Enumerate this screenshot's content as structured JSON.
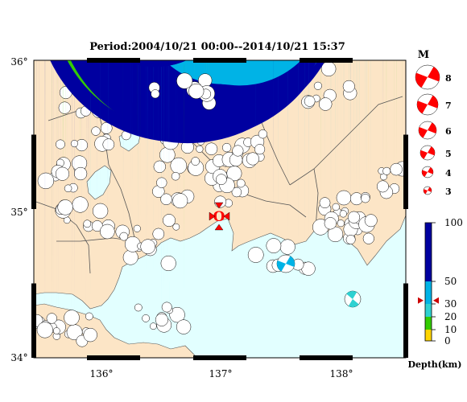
{
  "map": {
    "title": "Period:2004/10/21 00:00--2014/10/21 15:37",
    "lat_labels": [
      "36°",
      "35°",
      "34°"
    ],
    "lon_labels": [
      "136°",
      "137°",
      "138°"
    ],
    "land_color": "#fce5c6",
    "sea_color": "#e2ffff",
    "border_color": "#555555",
    "epicenter": {
      "label": "O",
      "color": "#ff0000",
      "marker": "red-triangle-markers"
    }
  },
  "magnitude_legend": {
    "title": "M",
    "levels": [
      "8",
      "7",
      "6",
      "5",
      "4",
      "3"
    ],
    "color": "#ff0000"
  },
  "depth_legend": {
    "title": "Depth(km)",
    "ticks": [
      "100",
      "50",
      "30",
      "20",
      "10",
      "0"
    ],
    "bands": [
      {
        "range": "50-100",
        "color": "#0000a0"
      },
      {
        "range": "30-50",
        "color": "#00b3e6"
      },
      {
        "range": "20-30",
        "color": "#2ed1d1"
      },
      {
        "range": "10-20",
        "color": "#33cc00"
      },
      {
        "range": "0-10",
        "color": "#ffd500"
      }
    ],
    "marker_depth": 33,
    "marker_color": "#cc0000"
  }
}
